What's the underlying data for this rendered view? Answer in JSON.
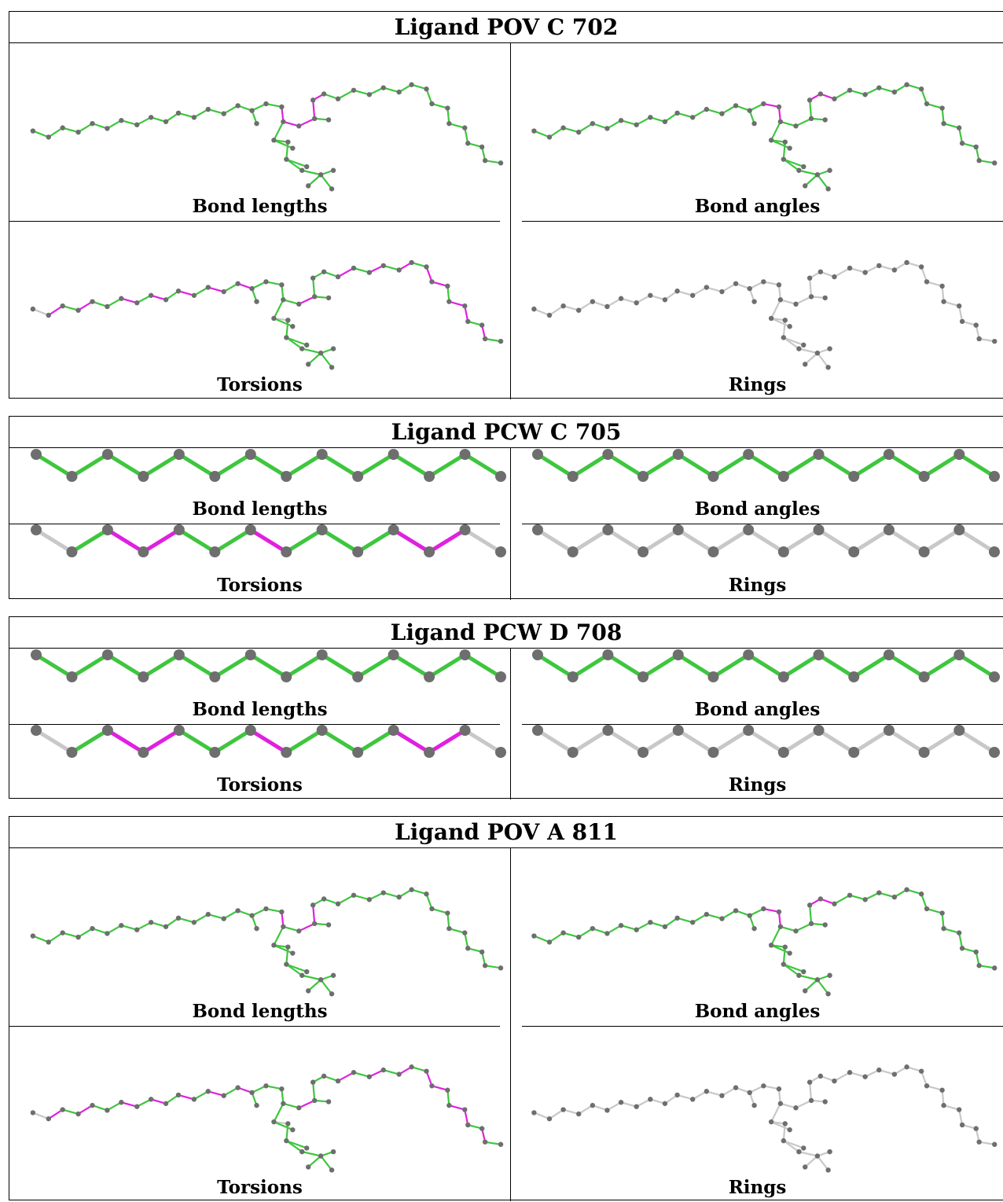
{
  "colors": {
    "outlier": "#e020e0",
    "ok": "#3ec63e",
    "neutral": "#c8c8c8",
    "atom": "#6e6e6e"
  },
  "blocks": [
    {
      "title": "Ligand POV C 702",
      "style": "full",
      "panels": [
        {
          "caption": "Bond lengths",
          "highlights": {
            "magenta": [
              [
                18,
                19
              ],
              [
                19,
                20
              ],
              [
                20,
                21
              ],
              [
                21,
                22
              ],
              [
                22,
                23
              ]
            ],
            "neutral": []
          }
        },
        {
          "caption": "Bond angles",
          "highlights": {
            "magenta": [
              [
                17,
                18
              ],
              [
                18,
                19
              ],
              [
                22,
                23
              ],
              [
                23,
                24
              ],
              [
                39,
                43
              ],
              [
                38,
                43
              ]
            ],
            "neutral": []
          }
        },
        {
          "caption": "Torsions",
          "highlights": {
            "magenta": [
              [
                1,
                2
              ],
              [
                3,
                4
              ],
              [
                6,
                7
              ],
              [
                8,
                9
              ],
              [
                10,
                11
              ],
              [
                12,
                13
              ],
              [
                14,
                15
              ],
              [
                16,
                17
              ],
              [
                20,
                21
              ],
              [
                31,
                32
              ],
              [
                33,
                34
              ],
              [
                34,
                35
              ],
              [
                36,
                37
              ],
              [
                24,
                25
              ],
              [
                26,
                27
              ],
              [
                28,
                29
              ],
              [
                30,
                31
              ],
              [
                44,
                45
              ],
              [
                47,
                48
              ],
              [
                49,
                50
              ]
            ],
            "neutral": [
              [
                0,
                1
              ],
              [
                18,
                46
              ],
              [
                22,
                49
              ],
              [
                39,
                40
              ],
              [
                39,
                41
              ],
              [
                39,
                42
              ],
              [
                39,
                43
              ],
              [
                36,
                38
              ]
            ]
          }
        },
        {
          "caption": "Rings",
          "highlights": {
            "magenta": [],
            "neutral": "all"
          }
        }
      ]
    },
    {
      "title": "Ligand PCW C 705",
      "style": "zigzag",
      "panels": [
        {
          "caption": "Bond lengths",
          "highlights": {
            "magenta": [],
            "neutral": []
          }
        },
        {
          "caption": "Bond angles",
          "highlights": {
            "magenta": [],
            "neutral": []
          }
        },
        {
          "caption": "Torsions",
          "highlights": {
            "magenta": [
              [
                2,
                3
              ],
              [
                3,
                4
              ],
              [
                6,
                7
              ],
              [
                10,
                11
              ],
              [
                11,
                12
              ]
            ],
            "neutral": [
              [
                0,
                1
              ],
              [
                12,
                13
              ]
            ]
          }
        },
        {
          "caption": "Rings",
          "highlights": {
            "magenta": [],
            "neutral": "all"
          }
        }
      ]
    },
    {
      "title": "Ligand PCW D 708",
      "style": "zigzag",
      "panels": [
        {
          "caption": "Bond lengths",
          "highlights": {
            "magenta": [],
            "neutral": []
          }
        },
        {
          "caption": "Bond angles",
          "highlights": {
            "magenta": [],
            "neutral": []
          }
        },
        {
          "caption": "Torsions",
          "highlights": {
            "magenta": [
              [
                2,
                3
              ],
              [
                3,
                4
              ],
              [
                6,
                7
              ],
              [
                10,
                11
              ],
              [
                11,
                12
              ]
            ],
            "neutral": [
              [
                0,
                1
              ],
              [
                12,
                13
              ]
            ]
          }
        },
        {
          "caption": "Rings",
          "highlights": {
            "magenta": [],
            "neutral": "all"
          }
        }
      ]
    },
    {
      "title": "Ligand POV A 811",
      "style": "full",
      "panels": [
        {
          "caption": "Bond lengths",
          "highlights": {
            "magenta": [
              [
                18,
                19
              ],
              [
                20,
                21
              ],
              [
                21,
                22
              ]
            ],
            "neutral": []
          }
        },
        {
          "caption": "Bond angles",
          "highlights": {
            "magenta": [
              [
                17,
                18
              ],
              [
                18,
                19
              ],
              [
                22,
                23
              ],
              [
                23,
                24
              ],
              [
                39,
                43
              ],
              [
                38,
                43
              ]
            ],
            "neutral": []
          }
        },
        {
          "caption": "Torsions",
          "highlights": {
            "magenta": [
              [
                1,
                2
              ],
              [
                3,
                4
              ],
              [
                6,
                7
              ],
              [
                8,
                9
              ],
              [
                10,
                11
              ],
              [
                12,
                13
              ],
              [
                14,
                15
              ],
              [
                16,
                17
              ],
              [
                20,
                21
              ],
              [
                31,
                32
              ],
              [
                33,
                34
              ],
              [
                34,
                35
              ],
              [
                36,
                37
              ],
              [
                24,
                25
              ],
              [
                26,
                27
              ],
              [
                28,
                29
              ],
              [
                30,
                31
              ]
            ],
            "neutral": [
              [
                0,
                1
              ],
              [
                18,
                46
              ],
              [
                22,
                49
              ],
              [
                39,
                40
              ],
              [
                39,
                41
              ],
              [
                39,
                42
              ],
              [
                39,
                43
              ]
            ]
          }
        },
        {
          "caption": "Rings",
          "highlights": {
            "magenta": [],
            "neutral": "all"
          }
        }
      ]
    }
  ]
}
